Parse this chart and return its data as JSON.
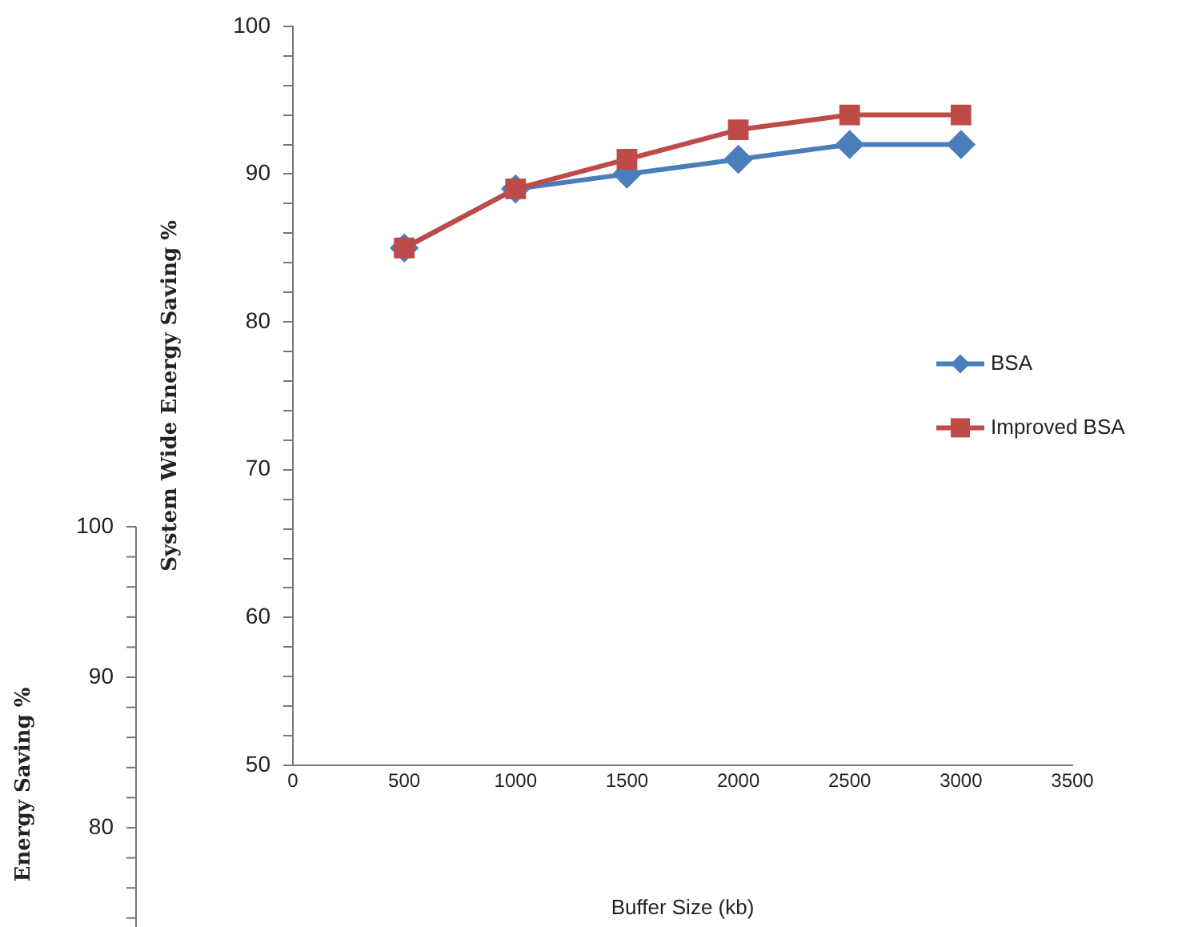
{
  "chart_data": [
    {
      "type": "line",
      "xlabel": "Buffer Size (kb)",
      "ylabel": "System Wide Energy Saving %",
      "x": [
        500,
        1000,
        1500,
        2000,
        2500,
        3000
      ],
      "series": [
        {
          "name": "BSA",
          "color": "#4a7ebb",
          "marker": "diamond",
          "values": [
            85,
            89,
            90,
            91,
            92,
            92
          ]
        },
        {
          "name": "Improved BSA",
          "color": "#be4b48",
          "marker": "square",
          "values": [
            85,
            89,
            91,
            93,
            94,
            94
          ]
        }
      ],
      "xlim": [
        0,
        3500
      ],
      "xticks": [
        0,
        500,
        1000,
        1500,
        2000,
        2500,
        3000,
        3500
      ],
      "ylim": [
        50,
        100
      ],
      "yticks": [
        50,
        {
          "value": 52,
          "label": null
        },
        {
          "value": 54,
          "label": null
        },
        {
          "value": 56,
          "label": null
        },
        {
          "value": 58,
          "label": null
        },
        60,
        {
          "value": 62,
          "label": null
        },
        {
          "value": 64,
          "label": null
        },
        {
          "value": 66,
          "label": null
        },
        {
          "value": 68,
          "label": null
        },
        70,
        {
          "value": 72,
          "label": null
        },
        {
          "value": 74,
          "label": null
        },
        {
          "value": 76,
          "label": null
        },
        {
          "value": 78,
          "label": null
        },
        80,
        {
          "value": 82,
          "label": null
        },
        {
          "value": 84,
          "label": null
        },
        {
          "value": 86,
          "label": null
        },
        {
          "value": 88,
          "label": null
        },
        90,
        {
          "value": 92,
          "label": null
        },
        {
          "value": 94,
          "label": null
        },
        {
          "value": 96,
          "label": null
        },
        {
          "value": 98,
          "label": null
        },
        100
      ],
      "grid": false,
      "legend": "right",
      "line_style": "solid"
    },
    {
      "type": "other",
      "ylabel": "Energy Saving %",
      "annotations": [
        "100",
        "90",
        "80"
      ]
    }
  ]
}
